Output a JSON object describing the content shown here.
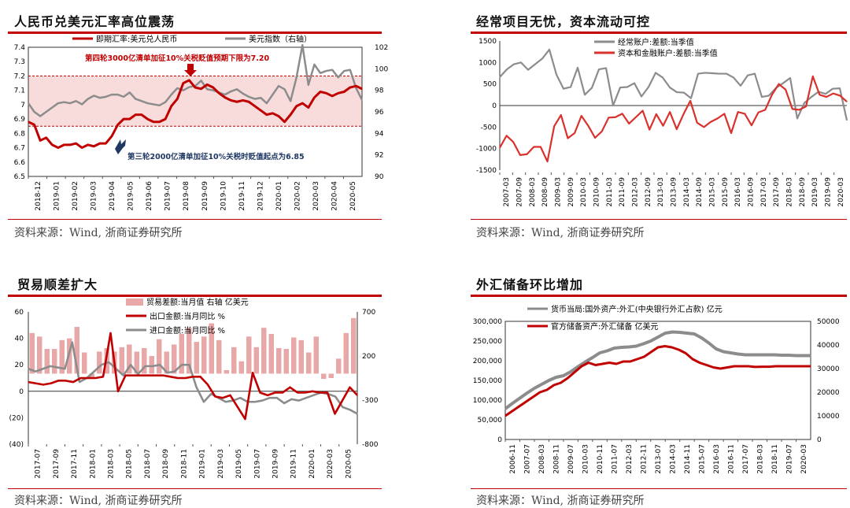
{
  "colors": {
    "red": "#c00000",
    "red2": "#d9312c",
    "gray": "#8c8c8c",
    "pink": "#f4cccc",
    "band": "#f8dcdc",
    "navy": "#1f3864",
    "bar": "#e8a8a8"
  },
  "source": "资料来源：Wind, 浙商证券研究所",
  "chart_data": [
    {
      "id": "c1",
      "type": "line",
      "title": "人民币兑美元汇率高位震荡",
      "x_ticks": [
        "2018-12",
        "2019-01",
        "2019-02",
        "2019-03",
        "2019-04",
        "2019-05",
        "2019-06",
        "2019-07",
        "2019-08",
        "2019-09",
        "2019-10",
        "2019-11",
        "2019-12",
        "2020-01",
        "2020-02",
        "2020-03",
        "2020-04",
        "2020-05"
      ],
      "ylim_left": [
        6.5,
        7.4
      ],
      "y_ticks_left": [
        "6.5",
        "6.6",
        "6.7",
        "6.8",
        "6.9",
        "7",
        "7.1",
        "7.2",
        "7.3",
        "7.4"
      ],
      "ylim_right": [
        90,
        102
      ],
      "y_ticks_right": [
        "90",
        "92",
        "94",
        "96",
        "98",
        "100",
        "102"
      ],
      "band": [
        6.85,
        7.2
      ],
      "series": [
        {
          "name": "即期汇率:美元兑人民币",
          "axis": "left",
          "values": [
            6.88,
            6.86,
            6.75,
            6.77,
            6.72,
            6.7,
            6.72,
            6.72,
            6.73,
            6.7,
            6.72,
            6.71,
            6.73,
            6.73,
            6.78,
            6.86,
            6.9,
            6.9,
            6.93,
            6.93,
            6.9,
            6.88,
            6.88,
            6.9,
            6.99,
            7.04,
            7.15,
            7.17,
            7.12,
            7.11,
            7.14,
            7.12,
            7.08,
            7.05,
            7.03,
            7.02,
            7.03,
            7.02,
            6.99,
            6.96,
            6.93,
            6.94,
            6.92,
            6.88,
            6.93,
            6.99,
            7.01,
            6.98,
            7.05,
            7.09,
            7.08,
            7.06,
            7.08,
            7.09,
            7.12,
            7.13,
            7.11
          ]
        },
        {
          "name": "美元指数（右轴）",
          "axis": "right",
          "values": [
            96.8,
            96.0,
            95.6,
            96.0,
            96.4,
            96.8,
            96.9,
            96.8,
            97.0,
            96.7,
            97.2,
            97.5,
            97.3,
            97.4,
            97.6,
            97.6,
            97.4,
            97.8,
            97.2,
            97.0,
            96.8,
            96.7,
            96.6,
            96.9,
            97.6,
            98.2,
            98.0,
            98.3,
            98.4,
            98.9,
            98.1,
            98.0,
            97.8,
            97.6,
            97.9,
            98.1,
            97.7,
            97.4,
            97.2,
            97.3,
            96.8,
            97.6,
            98.4,
            98.1,
            97.0,
            99.2,
            102.2,
            98.5,
            100.4,
            99.6,
            99.8,
            99.9,
            99.2,
            99.8,
            99.9,
            98.2,
            97.1
          ]
        }
      ],
      "legend": [
        "即期汇率:美元兑人民币",
        "美元指数（右轴）"
      ],
      "annotations": [
        "第四轮3000亿清单加征10%关税贬值预期下限为7.20",
        "第三轮2000亿清单加征10%关税时贬值起点为6.85"
      ]
    },
    {
      "id": "c2",
      "type": "line",
      "title": "经常项目无忧，资本流动可控",
      "x_ticks": [
        "2007-03",
        "2007-09",
        "2008-03",
        "2008-09",
        "2009-03",
        "2009-09",
        "2010-03",
        "2010-09",
        "2011-03",
        "2011-09",
        "2012-03",
        "2012-09",
        "2013-03",
        "2013-09",
        "2014-03",
        "2014-09",
        "2015-03",
        "2015-09",
        "2016-03",
        "2016-09",
        "2017-03",
        "2017-09",
        "2018-03",
        "2018-09",
        "2019-03",
        "2019-09",
        "2020-03"
      ],
      "ylim": [
        -1500,
        1500
      ],
      "y_ticks": [
        "-1500",
        "-1000",
        "-500",
        "0",
        "500",
        "1000",
        "1500"
      ],
      "series": [
        {
          "name": "经常账户:差额:当季值",
          "values": [
            660,
            840,
            960,
            1000,
            830,
            960,
            1090,
            1300,
            720,
            390,
            430,
            880,
            250,
            410,
            840,
            870,
            0,
            420,
            430,
            520,
            210,
            430,
            760,
            650,
            420,
            310,
            300,
            170,
            740,
            760,
            750,
            740,
            740,
            650,
            460,
            700,
            740,
            200,
            230,
            410,
            520,
            640,
            -300,
            60,
            200,
            320,
            270,
            390,
            400,
            -340
          ]
        },
        {
          "name": "资本和金融账户:差额:当季值",
          "values": [
            -980,
            -700,
            -850,
            -1150,
            -1130,
            -960,
            -960,
            -1300,
            -480,
            -220,
            -760,
            -640,
            -240,
            -470,
            -750,
            -600,
            -280,
            -270,
            -190,
            -420,
            -270,
            -120,
            -560,
            -200,
            -470,
            -150,
            -550,
            -200,
            110,
            -400,
            -500,
            -380,
            -300,
            -190,
            -640,
            -150,
            -190,
            -460,
            -160,
            -100,
            250,
            500,
            370,
            -80,
            -100,
            -20,
            680,
            250,
            200,
            280,
            230,
            90
          ]
        }
      ],
      "legend": [
        "经常账户:差额:当季值",
        "资本和金融账户:差额:当季值"
      ]
    },
    {
      "id": "c3",
      "type": "bar+line",
      "title": "贸易顺差扩大",
      "x_ticks": [
        "2017-07",
        "2017-09",
        "2017-11",
        "2018-01",
        "2018-03",
        "2018-05",
        "2018-07",
        "2018-09",
        "2018-11",
        "2019-01",
        "2019-03",
        "2019-05",
        "2019-07",
        "2019-09",
        "2019-11",
        "2020-01",
        "2020-03",
        "2020-05"
      ],
      "ylim_left": [
        -40,
        60
      ],
      "y_ticks_left": [
        "(40)",
        "(20)",
        "0",
        "20",
        "40",
        "60"
      ],
      "ylim_right": [
        -800,
        700
      ],
      "y_ticks_right": [
        "-800",
        "-300",
        "200",
        "700"
      ],
      "bar_series": {
        "name": "贸易差额:当月值 右轴 亿美元",
        "values": [
          460,
          420,
          280,
          280,
          380,
          400,
          530,
          240,
          -50,
          250,
          290,
          250,
          300,
          330,
          250,
          290,
          200,
          390,
          250,
          330,
          450,
          520,
          360,
          420,
          570,
          380,
          40,
          300,
          140,
          420,
          300,
          520,
          450,
          290,
          280,
          410,
          380,
          240,
          420,
          -60,
          -50,
          170,
          460,
          630
        ]
      },
      "series": [
        {
          "name": "出口金额:当月同比 %",
          "values": [
            7,
            6,
            5,
            6,
            8,
            8,
            7,
            10,
            10,
            10,
            11,
            44,
            0,
            12,
            12,
            12,
            12,
            12,
            12,
            11,
            10,
            10,
            11,
            11,
            5,
            -4,
            -5,
            -3,
            -12,
            -21,
            14,
            -1,
            -3,
            -1,
            -1,
            3,
            -1,
            -1,
            0,
            -1,
            -1,
            -17,
            -7,
            3,
            -3
          ]
        },
        {
          "name": "进口金额:当月同比 %",
          "values": [
            17,
            15,
            17,
            19,
            18,
            17,
            37,
            7,
            10,
            15,
            20,
            22,
            17,
            12,
            20,
            13,
            19,
            19,
            20,
            14,
            15,
            20,
            20,
            3,
            -8,
            -2,
            -5,
            -8,
            -7,
            -5,
            -8,
            -8,
            -7,
            -5,
            -5,
            -9,
            -6,
            -7,
            -5,
            -3,
            -1,
            -2,
            -4,
            -12,
            -14,
            -17
          ]
        }
      ],
      "legend": [
        "贸易差额:当月值 右轴 亿美元",
        "出口金额:当月同比 %",
        "进口金额:当月同比 %"
      ]
    },
    {
      "id": "c4",
      "type": "line",
      "title": "外汇储备环比增加",
      "x_ticks": [
        "2006-11",
        "2007-07",
        "2008-03",
        "2008-11",
        "2009-07",
        "2010-03",
        "2010-11",
        "2011-07",
        "2012-03",
        "2012-11",
        "2013-07",
        "2014-03",
        "2014-11",
        "2015-07",
        "2016-03",
        "2016-11",
        "2017-07",
        "2018-03",
        "2018-11",
        "2019-07",
        "2020-03"
      ],
      "ylim_left": [
        0,
        300000
      ],
      "y_ticks_left": [
        "0",
        "50,000",
        "100,000",
        "150,000",
        "200,000",
        "250,000",
        "300,000"
      ],
      "ylim_right": [
        0,
        50000
      ],
      "y_ticks_right": [
        "0",
        "10000",
        "20000",
        "30000",
        "40000",
        "50000"
      ],
      "series": [
        {
          "name": "货币当局:国外资产:外汇(中央银行外汇占款) 亿元",
          "axis": "left",
          "values": [
            78000,
            92000,
            105000,
            118000,
            130000,
            140000,
            150000,
            158000,
            162000,
            172000,
            185000,
            197000,
            208000,
            220000,
            225000,
            232000,
            234000,
            235000,
            237000,
            243000,
            250000,
            260000,
            270000,
            273000,
            272000,
            270000,
            268000,
            258000,
            245000,
            230000,
            223000,
            220000,
            217000,
            215000,
            215000,
            215000,
            215000,
            215000,
            214000,
            214000,
            213000,
            213000,
            213000
          ]
        },
        {
          "name": "官方储备资产:外汇储备 亿美元",
          "axis": "right",
          "values": [
            10000,
            12000,
            14000,
            16000,
            18000,
            20000,
            21000,
            23000,
            24000,
            26000,
            28500,
            31000,
            32500,
            31500,
            32000,
            32500,
            32000,
            33000,
            33000,
            34000,
            35000,
            37000,
            39000,
            39500,
            39000,
            38000,
            36500,
            34000,
            32500,
            31500,
            30500,
            30000,
            30500,
            31000,
            31000,
            31000,
            30700,
            30800,
            30800,
            31000,
            31000,
            31000,
            31000,
            31000,
            31000
          ]
        }
      ],
      "legend": [
        "货币当局:国外资产:外汇(中央银行外汇占款) 亿元",
        "官方储备资产:外汇储备 亿美元"
      ]
    }
  ]
}
